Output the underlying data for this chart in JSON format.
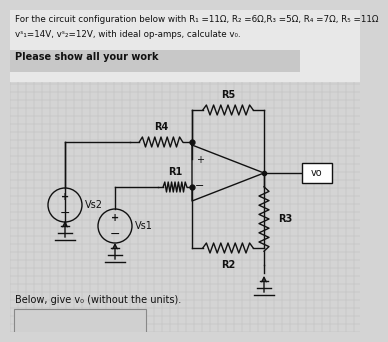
{
  "title_line1": "For the circuit configuration below with R₁ =11Ω, R₂ =6Ω,R₃ =5Ω, R₄ =7Ω, R₅ =11Ω",
  "title_line2": "vˢ₁=14V, vˢ₂=12V, with ideal op-amps, calculate v₀.",
  "subtitle": "Please show all your work",
  "footer": "Below, give v₀ (without the units).",
  "bg_color": "#d4d4d4",
  "grid_color": "#bebebe",
  "line_color": "#111111",
  "text_color": "#111111"
}
